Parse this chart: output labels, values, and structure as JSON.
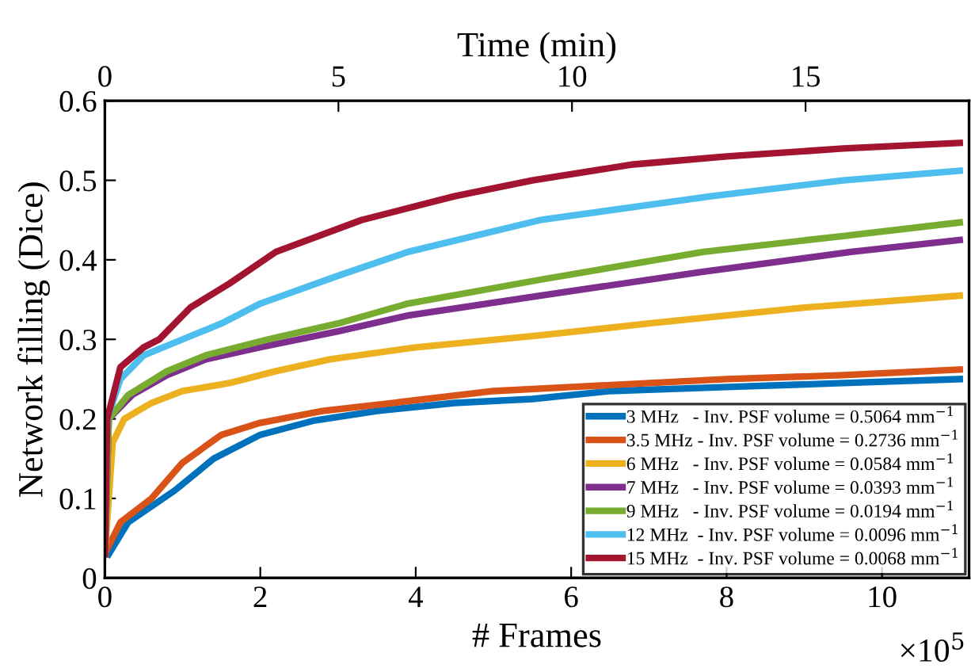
{
  "chart_data": {
    "type": "line",
    "xlabel": "# Frames",
    "ylabel": "Network filling (Dice)",
    "x2label": "Time (min)",
    "xlim": [
      0,
      11.12
    ],
    "xticks": [
      0,
      2,
      4,
      6,
      8,
      10
    ],
    "x2lim": [
      0,
      18.5
    ],
    "x2ticks": [
      0,
      5,
      10,
      15
    ],
    "ylim": [
      0,
      0.6
    ],
    "yticks": [
      0,
      0.1,
      0.2,
      0.3,
      0.4,
      0.5,
      0.6
    ],
    "annotations": [
      "×10$^{5}$"
    ],
    "grid": false,
    "legend": "bottom right",
    "line_style": "solid",
    "marker": "none",
    "series": [
      {
        "name": "3 MHz   - Inv. PSF volume = 0.5064 mm$^{−1}$",
        "color": "#0072bd",
        "x": [
          0.05,
          0.3,
          0.9,
          1.4,
          2,
          2.7,
          3.5,
          4.5,
          5.5,
          6.5,
          8,
          9.5,
          11
        ],
        "values": [
          0.03,
          0.07,
          0.11,
          0.15,
          0.18,
          0.198,
          0.21,
          0.22,
          0.225,
          0.235,
          0.24,
          0.245,
          0.25
        ]
      },
      {
        "name": "3.5 MHz - Inv. PSF volume = 0.2736 mm$^{−1}$",
        "color": "#d95319",
        "x": [
          0,
          0.2,
          0.6,
          1,
          1.5,
          2,
          2.8,
          3.7,
          5,
          6,
          8,
          9.5,
          11
        ],
        "values": [
          0.03,
          0.07,
          0.1,
          0.145,
          0.18,
          0.195,
          0.21,
          0.22,
          0.235,
          0.24,
          0.25,
          0.255,
          0.262
        ]
      },
      {
        "name": "6 MHz   - Inv. PSF volume = 0.0584 mm$^{−1}$",
        "color": "#edb120",
        "x": [
          0,
          0.1,
          0.25,
          0.6,
          1,
          1.6,
          2.2,
          2.9,
          4,
          5.6,
          7,
          9,
          11
        ],
        "values": [
          0.03,
          0.17,
          0.2,
          0.22,
          0.235,
          0.245,
          0.26,
          0.275,
          0.29,
          0.305,
          0.32,
          0.34,
          0.355
        ]
      },
      {
        "name": "7 MHz   - Inv. PSF volume = 0.0393 mm$^{−1}$",
        "color": "#7e2f8e",
        "x": [
          0,
          0.05,
          0.35,
          0.8,
          1.3,
          2,
          3,
          3.9,
          5.6,
          7.7,
          9.6,
          11
        ],
        "values": [
          0.03,
          0.2,
          0.23,
          0.255,
          0.275,
          0.29,
          0.31,
          0.33,
          0.355,
          0.385,
          0.41,
          0.425
        ]
      },
      {
        "name": "9 MHz   - Inv. PSF volume = 0.0194 mm$^{−1}$",
        "color": "#77ac30",
        "x": [
          0,
          0.05,
          0.3,
          0.8,
          1.3,
          2.1,
          3,
          3.9,
          5.6,
          7.7,
          9.5,
          11
        ],
        "values": [
          0.03,
          0.2,
          0.23,
          0.26,
          0.28,
          0.3,
          0.32,
          0.345,
          0.375,
          0.41,
          0.43,
          0.447
        ]
      },
      {
        "name": "12 MHz  - Inv. PSF volume = 0.0096 mm$^{−1}$",
        "color": "#4dbeee",
        "x": [
          0,
          0.03,
          0.2,
          0.5,
          1,
          1.5,
          2,
          3,
          3.9,
          5.6,
          7.8,
          9.5,
          11
        ],
        "values": [
          0.03,
          0.2,
          0.25,
          0.28,
          0.3,
          0.32,
          0.345,
          0.38,
          0.41,
          0.45,
          0.48,
          0.5,
          0.512
        ]
      },
      {
        "name": "15 MHz  - Inv. PSF volume = 0.0068 mm$^{−1}$",
        "color": "#a2142f",
        "x": [
          0,
          0.03,
          0.2,
          0.5,
          0.7,
          1.1,
          1.6,
          2.2,
          3.3,
          4.5,
          5.5,
          6.8,
          8,
          9.5,
          11
        ],
        "values": [
          0.03,
          0.2,
          0.265,
          0.29,
          0.3,
          0.34,
          0.37,
          0.41,
          0.45,
          0.48,
          0.5,
          0.52,
          0.53,
          0.54,
          0.547
        ]
      }
    ]
  }
}
